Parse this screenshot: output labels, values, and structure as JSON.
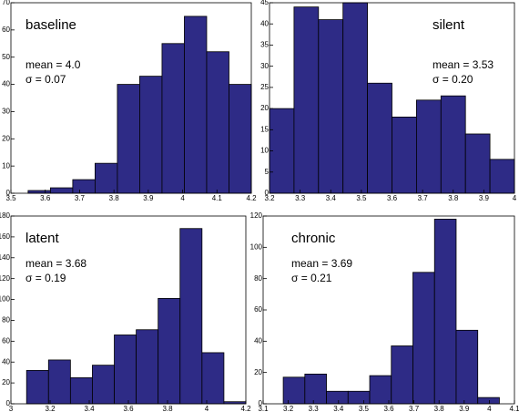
{
  "chart_data": [
    {
      "type": "histogram",
      "label": "baseline",
      "mean": "mean = 4.0",
      "sigma": "σ = 0.07",
      "color": "#2e2b86",
      "bins": [
        3.55,
        3.615,
        3.68,
        3.745,
        3.81,
        3.875,
        3.94,
        4.005,
        4.07,
        4.135,
        4.2
      ],
      "counts": [
        1,
        2,
        5,
        11,
        40,
        43,
        55,
        65,
        52,
        40
      ],
      "xlim": [
        3.5,
        4.2
      ],
      "ylim": [
        0,
        70
      ],
      "xticks": [
        3.5,
        3.6,
        3.7,
        3.8,
        3.9,
        4,
        4.1,
        4.2
      ],
      "yticks": [
        0,
        10,
        20,
        30,
        40,
        50,
        60,
        70
      ]
    },
    {
      "type": "histogram",
      "label": "silent",
      "mean": "mean = 3.53",
      "sigma": "σ = 0.20",
      "color": "#2e2b86",
      "bins": [
        3.2,
        3.28,
        3.36,
        3.44,
        3.52,
        3.6,
        3.68,
        3.76,
        3.84,
        3.92,
        4.0
      ],
      "counts": [
        20,
        44,
        41,
        45,
        26,
        18,
        22,
        23,
        14,
        8
      ],
      "xlim": [
        3.2,
        4
      ],
      "ylim": [
        0,
        45
      ],
      "xticks": [
        3.2,
        3.3,
        3.4,
        3.5,
        3.6,
        3.7,
        3.8,
        3.9,
        4
      ],
      "yticks": [
        0,
        5,
        10,
        15,
        20,
        25,
        30,
        35,
        40,
        45
      ]
    },
    {
      "type": "histogram",
      "label": "latent",
      "mean": "mean = 3.68",
      "sigma": "σ = 0.19",
      "color": "#2e2b86",
      "bins": [
        3.08,
        3.192,
        3.304,
        3.416,
        3.528,
        3.64,
        3.752,
        3.864,
        3.976,
        4.088,
        4.2
      ],
      "counts": [
        32,
        42,
        25,
        37,
        66,
        71,
        101,
        168,
        49,
        2
      ],
      "xlim": [
        3,
        4.2
      ],
      "ylim": [
        0,
        180
      ],
      "xticks": [
        3,
        3.2,
        3.4,
        3.6,
        3.8,
        4,
        4.2
      ],
      "yticks": [
        0,
        20,
        40,
        60,
        80,
        100,
        120,
        140,
        160,
        180
      ]
    },
    {
      "type": "histogram",
      "label": "chronic",
      "mean": "mean = 3.69",
      "sigma": "σ = 0.21",
      "color": "#2e2b86",
      "bins": [
        3.18,
        3.266,
        3.352,
        3.438,
        3.524,
        3.61,
        3.696,
        3.782,
        3.868,
        3.954,
        4.04
      ],
      "counts": [
        17,
        19,
        8,
        8,
        18,
        37,
        84,
        118,
        47,
        4
      ],
      "xlim": [
        3.1,
        4.1
      ],
      "ylim": [
        0,
        120
      ],
      "xticks": [
        3.1,
        3.2,
        3.3,
        3.4,
        3.5,
        3.6,
        3.7,
        3.8,
        3.9,
        4,
        4.1
      ],
      "yticks": [
        0,
        20,
        40,
        60,
        80,
        100,
        120
      ]
    }
  ]
}
